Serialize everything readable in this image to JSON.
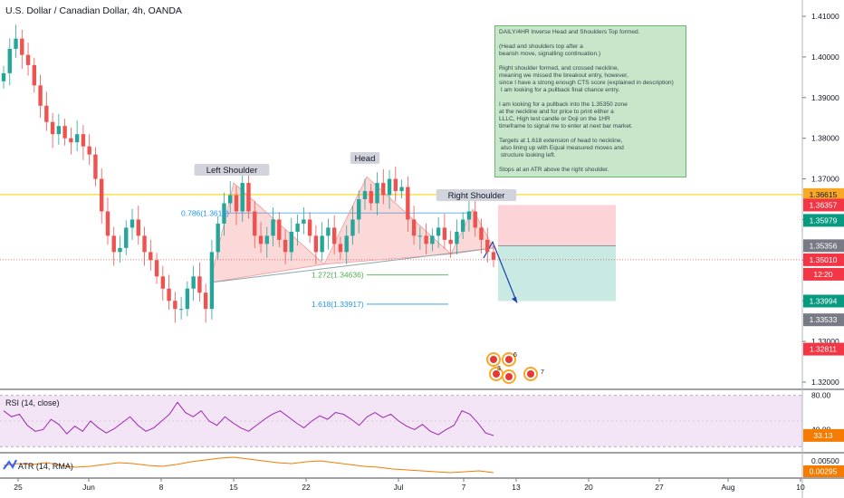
{
  "chart_data": {
    "type": "candlestick",
    "title": "U.S. Dollar / Canadian Dollar, 4h, OANDA",
    "ylim": [
      1.315,
      1.415
    ],
    "y_ticks": [
      "1.41000",
      "1.40000",
      "1.39000",
      "1.38000",
      "1.37000",
      "1.36000",
      "1.35000",
      "1.34000",
      "1.33000",
      "1.32000"
    ],
    "x_ticks": [
      "25",
      "Jun",
      "8",
      "15",
      "22",
      "Jul",
      "7",
      "13",
      "20",
      "27",
      "Aug",
      "10"
    ],
    "close_series": [
      1.396,
      1.402,
      1.4045,
      1.4005,
      1.398,
      1.393,
      1.388,
      1.384,
      1.381,
      1.383,
      1.38,
      1.379,
      1.381,
      1.378,
      1.376,
      1.37,
      1.362,
      1.356,
      1.352,
      1.353,
      1.358,
      1.36,
      1.356,
      1.352,
      1.35,
      1.346,
      1.343,
      1.34,
      1.338,
      1.338,
      1.343,
      1.346,
      1.342,
      1.338,
      1.352,
      1.359,
      1.364,
      1.366,
      1.362,
      1.369,
      1.362,
      1.356,
      1.354,
      1.356,
      1.36,
      1.355,
      1.352,
      1.357,
      1.359,
      1.36,
      1.356,
      1.352,
      1.356,
      1.358,
      1.354,
      1.352,
      1.356,
      1.36,
      1.365,
      1.367,
      1.364,
      1.369,
      1.366,
      1.37,
      1.367,
      1.368,
      1.36,
      1.356,
      1.356,
      1.354,
      1.356,
      1.358,
      1.355,
      1.354,
      1.357,
      1.36,
      1.362,
      1.358,
      1.355,
      1.352,
      1.3501
    ],
    "price_labels": [
      {
        "text": "1.36615",
        "value": 1.36615,
        "color": "#f9a825",
        "text_color": "#131722"
      },
      {
        "text": "1.36357",
        "value": 1.36357,
        "color": "#f23645",
        "text_color": "#ffffff"
      },
      {
        "text": "1.35979",
        "value": 1.35979,
        "color": "#089981",
        "text_color": "#ffffff"
      },
      {
        "text": "1.35356",
        "value": 1.35356,
        "color": "#787b86",
        "text_color": "#ffffff"
      },
      {
        "text": "1.35010",
        "value": 1.3501,
        "color": "#f23645",
        "text_color": "#ffffff"
      },
      {
        "text": "12:20",
        "value": 1.348,
        "color": "#f23645",
        "text_color": "#ffffff"
      },
      {
        "text": "1.33994",
        "value": 1.33994,
        "color": "#089981",
        "text_color": "#ffffff"
      },
      {
        "text": "1.33533",
        "value": 1.33533,
        "color": "#787b86",
        "text_color": "#ffffff"
      },
      {
        "text": "1.32811",
        "value": 1.32811,
        "color": "#f23645",
        "text_color": "#ffffff"
      }
    ],
    "annotations": {
      "left_shoulder": "Left Shoulder",
      "head": "Head",
      "right_shoulder": "Right Shoulder",
      "fib_0786": "0.786(1.3616)",
      "fib_1272": "1.272(1.34636)",
      "fib_1618": "1.618(1.33917)"
    },
    "rsi": {
      "label": "RSI (14, close)",
      "ticks": [
        "80.00",
        "40.00"
      ],
      "current": "33.13",
      "values": [
        62,
        55,
        58,
        45,
        38,
        40,
        52,
        46,
        35,
        44,
        38,
        50,
        42,
        36,
        41,
        48,
        55,
        45,
        38,
        42,
        50,
        58,
        72,
        60,
        55,
        62,
        50,
        45,
        55,
        48,
        42,
        38,
        45,
        52,
        58,
        62,
        55,
        48,
        42,
        50,
        56,
        52,
        60,
        58,
        52,
        45,
        55,
        60,
        54,
        58,
        50,
        44,
        40,
        46,
        38,
        34,
        40,
        45,
        62,
        58,
        48,
        36,
        33
      ]
    },
    "atr": {
      "label": "ATR (14, RMA)",
      "ticks": [
        "0.00500"
      ],
      "current": "0.00295"
    }
  },
  "note": {
    "text": "DAILY/4HR Inverse Head and Shoulders Top formed.\n\n(Head and shoulders top after a\nbearish move, signalling continuation.)\n\nRight shoulder formed, and crossed neckline,\nmeaning we missed the breakout entry, however,\nsince I have a strong enough CTS score (explained in description)\n I am looking for a pullback final chance entry.\n\nI am looking for a pullback into the 1.35350 zone\nat the neckline and for price to print either a\nLLLC, High test candle or Doji on the 1HR\ntimeframe to signal me to enter at next bar market.\n\nTargets at 1.618 extension of head to neckline,\n also lining up with Equal measured moves and\n structure looking left.\n\nStops at an ATR above the right shoulder."
  },
  "events": {
    "badge_count_top": "6",
    "badge_count_mid": "3",
    "badge_count_right": "7"
  },
  "colors": {
    "up": "#26a69a",
    "down": "#ef5350",
    "rsi": "#9c27b0",
    "atr": "#f57c00",
    "yellow_line": "#f9e04b",
    "fib": "#2196f3"
  }
}
